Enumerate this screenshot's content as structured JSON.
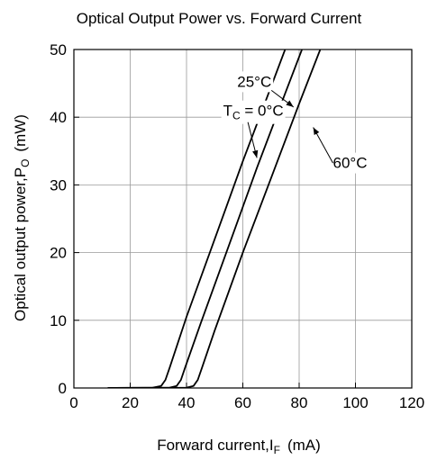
{
  "chart_data": {
    "type": "line",
    "title": "Optical Output Power vs. Forward Current",
    "xlabel": "Forward current,",
    "xlabel_symbol": "I",
    "xlabel_sub": "F",
    "xlabel_unit": "(mA)",
    "ylabel": "Optical output power,",
    "ylabel_symbol": "P",
    "ylabel_sub": "O",
    "ylabel_unit": "(mW)",
    "xlim": [
      0,
      120
    ],
    "ylim": [
      0,
      50
    ],
    "xticks": [
      0,
      20,
      40,
      60,
      80,
      100,
      120
    ],
    "yticks": [
      0,
      10,
      20,
      30,
      40,
      50
    ],
    "grid": true,
    "series": [
      {
        "name": "TC = 0°C",
        "label_main": "T",
        "label_sub": "C",
        "label_rest": " = 0°C",
        "points": [
          [
            12,
            0
          ],
          [
            28,
            0.05
          ],
          [
            31,
            0.3
          ],
          [
            32.5,
            1.2
          ],
          [
            34,
            3
          ],
          [
            40,
            10.5
          ],
          [
            50,
            22
          ],
          [
            60,
            33.5
          ],
          [
            70,
            44.5
          ],
          [
            75,
            50
          ]
        ]
      },
      {
        "name": "25°C",
        "label_main": "25°C",
        "label_sub": "",
        "label_rest": "",
        "points": [
          [
            12,
            0
          ],
          [
            34,
            0.05
          ],
          [
            36.5,
            0.3
          ],
          [
            38,
            1.2
          ],
          [
            39.5,
            3
          ],
          [
            45,
            9.5
          ],
          [
            55,
            21
          ],
          [
            65,
            32.5
          ],
          [
            75,
            43.5
          ],
          [
            81,
            50
          ]
        ]
      },
      {
        "name": "60°C",
        "label_main": "60°C",
        "label_sub": "",
        "label_rest": "",
        "points": [
          [
            12,
            0
          ],
          [
            40,
            0.05
          ],
          [
            42.5,
            0.3
          ],
          [
            44,
            1.2
          ],
          [
            45.5,
            3
          ],
          [
            50,
            8.5
          ],
          [
            60,
            20
          ],
          [
            70,
            31
          ],
          [
            80,
            42
          ],
          [
            87.5,
            50
          ]
        ]
      }
    ],
    "annotations": [
      {
        "series": 0,
        "text_anchor": [
          53,
          40.2
        ],
        "arrow_to": [
          65,
          34
        ]
      },
      {
        "series": 1,
        "text_anchor": [
          58,
          44.5
        ],
        "arrow_to": [
          78,
          41.5
        ]
      },
      {
        "series": 2,
        "text_anchor": [
          92,
          32.5
        ],
        "arrow_to": [
          85,
          38.5
        ]
      }
    ]
  }
}
